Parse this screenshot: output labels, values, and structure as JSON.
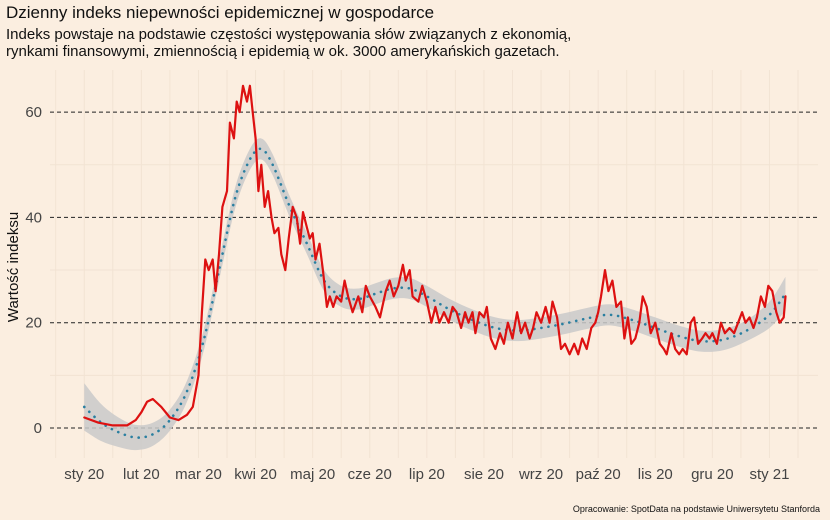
{
  "title": "Dzienny indeks niepewności epidemicznej w gospodarce",
  "subtitle": [
    "Indeks powstaje na podstawie częstości występowania słów związanych z ekonomią,",
    "rynkami finansowymi, zmiennością i epidemią w ok. 3000 amerykańskich gazetach."
  ],
  "source": "Opracowanie: SpotData na podstawie Uniwersytetu Stanforda",
  "colors": {
    "background": "#fbeee0",
    "index_line": "#dd1111",
    "trend_dots": "#2a7fa0",
    "confidence_band": "#c9c9c9",
    "grid_dashed": "#222222",
    "grid_minor": "#f2e3d3"
  },
  "chart_data": {
    "type": "line",
    "title": "Dzienny indeks niepewności epidemicznej w gospodarce",
    "xlabel": "",
    "ylabel": "Wartość indeksu",
    "x_unit": "month (0 = sty 20)",
    "xlim": [
      -0.6,
      12.85
    ],
    "ylim": [
      -5.7,
      68
    ],
    "grid": "horizontal dashed",
    "y_ticks": [
      0,
      20,
      40,
      60
    ],
    "x_tick_labels": [
      "sty 20",
      "lut 20",
      "mar 20",
      "kwi 20",
      "maj 20",
      "cze 20",
      "lip 20",
      "sie 20",
      "wrz 20",
      "paź 20",
      "lis 20",
      "gru 20",
      "sty 21"
    ],
    "series": [
      {
        "kind": "index",
        "points": [
          [
            0.0,
            2.0
          ],
          [
            0.25,
            1.0
          ],
          [
            0.5,
            0.5
          ],
          [
            0.75,
            0.5
          ],
          [
            0.9,
            1.5
          ],
          [
            1.0,
            3.0
          ],
          [
            1.1,
            5.0
          ],
          [
            1.2,
            5.5
          ],
          [
            1.35,
            4.0
          ],
          [
            1.5,
            2.0
          ],
          [
            1.65,
            1.5
          ],
          [
            1.8,
            2.5
          ],
          [
            1.9,
            4.0
          ],
          [
            2.0,
            10.0
          ],
          [
            2.06,
            22.0
          ],
          [
            2.12,
            32.0
          ],
          [
            2.18,
            30.0
          ],
          [
            2.25,
            32.0
          ],
          [
            2.3,
            26.0
          ],
          [
            2.36,
            33.0
          ],
          [
            2.42,
            42.0
          ],
          [
            2.5,
            45.0
          ],
          [
            2.55,
            58.0
          ],
          [
            2.62,
            55.0
          ],
          [
            2.67,
            62.0
          ],
          [
            2.72,
            60.0
          ],
          [
            2.78,
            65.0
          ],
          [
            2.85,
            62.0
          ],
          [
            2.9,
            65.0
          ],
          [
            2.95,
            60.0
          ],
          [
            3.0,
            55.0
          ],
          [
            3.05,
            45.0
          ],
          [
            3.1,
            50.0
          ],
          [
            3.16,
            42.0
          ],
          [
            3.22,
            45.0
          ],
          [
            3.28,
            40.0
          ],
          [
            3.33,
            37.0
          ],
          [
            3.4,
            38.0
          ],
          [
            3.45,
            33.0
          ],
          [
            3.52,
            30.0
          ],
          [
            3.58,
            36.0
          ],
          [
            3.65,
            42.0
          ],
          [
            3.72,
            40.0
          ],
          [
            3.78,
            35.0
          ],
          [
            3.83,
            41.0
          ],
          [
            3.9,
            38.0
          ],
          [
            3.95,
            36.0
          ],
          [
            4.0,
            37.0
          ],
          [
            4.05,
            32.0
          ],
          [
            4.12,
            35.0
          ],
          [
            4.18,
            30.0
          ],
          [
            4.25,
            23.0
          ],
          [
            4.3,
            25.0
          ],
          [
            4.36,
            23.0
          ],
          [
            4.42,
            25.0
          ],
          [
            4.5,
            24.0
          ],
          [
            4.56,
            28.0
          ],
          [
            4.62,
            25.0
          ],
          [
            4.7,
            22.0
          ],
          [
            4.8,
            25.0
          ],
          [
            4.87,
            22.0
          ],
          [
            4.93,
            27.0
          ],
          [
            5.0,
            25.0
          ],
          [
            5.1,
            23.0
          ],
          [
            5.18,
            21.0
          ],
          [
            5.28,
            26.0
          ],
          [
            5.35,
            28.0
          ],
          [
            5.42,
            25.0
          ],
          [
            5.5,
            27.0
          ],
          [
            5.58,
            31.0
          ],
          [
            5.63,
            28.0
          ],
          [
            5.7,
            30.0
          ],
          [
            5.75,
            25.0
          ],
          [
            5.85,
            24.0
          ],
          [
            5.92,
            27.0
          ],
          [
            6.0,
            24.0
          ],
          [
            6.08,
            20.0
          ],
          [
            6.15,
            23.0
          ],
          [
            6.22,
            20.0
          ],
          [
            6.3,
            22.0
          ],
          [
            6.38,
            20.0
          ],
          [
            6.45,
            23.0
          ],
          [
            6.52,
            22.0
          ],
          [
            6.6,
            19.0
          ],
          [
            6.67,
            22.0
          ],
          [
            6.73,
            20.0
          ],
          [
            6.8,
            22.0
          ],
          [
            6.85,
            18.0
          ],
          [
            6.92,
            22.0
          ],
          [
            7.0,
            21.0
          ],
          [
            7.05,
            23.0
          ],
          [
            7.12,
            17.0
          ],
          [
            7.2,
            15.0
          ],
          [
            7.28,
            18.0
          ],
          [
            7.35,
            16.0
          ],
          [
            7.42,
            20.0
          ],
          [
            7.5,
            17.0
          ],
          [
            7.58,
            22.0
          ],
          [
            7.65,
            18.0
          ],
          [
            7.72,
            20.0
          ],
          [
            7.8,
            17.0
          ],
          [
            7.86,
            19.0
          ],
          [
            7.92,
            22.0
          ],
          [
            8.0,
            20.0
          ],
          [
            8.08,
            23.0
          ],
          [
            8.15,
            20.0
          ],
          [
            8.2,
            24.0
          ],
          [
            8.28,
            21.0
          ],
          [
            8.35,
            15.0
          ],
          [
            8.42,
            16.0
          ],
          [
            8.5,
            14.0
          ],
          [
            8.58,
            16.0
          ],
          [
            8.65,
            14.0
          ],
          [
            8.72,
            17.0
          ],
          [
            8.8,
            15.0
          ],
          [
            8.88,
            19.0
          ],
          [
            8.95,
            20.0
          ],
          [
            9.0,
            22.0
          ],
          [
            9.05,
            25.0
          ],
          [
            9.12,
            30.0
          ],
          [
            9.18,
            26.0
          ],
          [
            9.25,
            28.0
          ],
          [
            9.32,
            23.0
          ],
          [
            9.4,
            24.0
          ],
          [
            9.46,
            17.0
          ],
          [
            9.52,
            21.0
          ],
          [
            9.58,
            16.0
          ],
          [
            9.65,
            17.0
          ],
          [
            9.72,
            20.0
          ],
          [
            9.78,
            25.0
          ],
          [
            9.85,
            23.0
          ],
          [
            9.92,
            18.0
          ],
          [
            10.0,
            20.0
          ],
          [
            10.08,
            16.0
          ],
          [
            10.15,
            15.0
          ],
          [
            10.2,
            14.0
          ],
          [
            10.28,
            18.0
          ],
          [
            10.35,
            15.0
          ],
          [
            10.42,
            14.0
          ],
          [
            10.48,
            15.0
          ],
          [
            10.55,
            14.0
          ],
          [
            10.62,
            20.0
          ],
          [
            10.68,
            21.0
          ],
          [
            10.75,
            16.0
          ],
          [
            10.82,
            17.0
          ],
          [
            10.88,
            18.0
          ],
          [
            10.95,
            17.0
          ],
          [
            11.0,
            18.0
          ],
          [
            11.08,
            16.0
          ],
          [
            11.15,
            20.0
          ],
          [
            11.22,
            18.0
          ],
          [
            11.3,
            19.0
          ],
          [
            11.38,
            18.0
          ],
          [
            11.45,
            20.0
          ],
          [
            11.52,
            22.0
          ],
          [
            11.58,
            20.0
          ],
          [
            11.65,
            21.0
          ],
          [
            11.72,
            19.0
          ],
          [
            11.78,
            21.0
          ],
          [
            11.85,
            25.0
          ],
          [
            11.92,
            23.0
          ],
          [
            11.98,
            27.0
          ],
          [
            12.05,
            26.0
          ],
          [
            12.12,
            22.0
          ],
          [
            12.18,
            20.0
          ],
          [
            12.25,
            21.0
          ],
          [
            12.28,
            25.0
          ]
        ]
      },
      {
        "kind": "trend",
        "points": [
          [
            0.0,
            4.0
          ],
          [
            0.3,
            1.0
          ],
          [
            0.6,
            -0.8
          ],
          [
            0.9,
            -1.8
          ],
          [
            1.2,
            -1.2
          ],
          [
            1.5,
            1.5
          ],
          [
            1.8,
            7.0
          ],
          [
            2.1,
            17.0
          ],
          [
            2.4,
            32.0
          ],
          [
            2.65,
            44.0
          ],
          [
            2.9,
            51.0
          ],
          [
            3.1,
            53.0
          ],
          [
            3.3,
            50.0
          ],
          [
            3.6,
            42.0
          ],
          [
            3.9,
            35.0
          ],
          [
            4.2,
            28.0
          ],
          [
            4.5,
            25.0
          ],
          [
            4.8,
            24.5
          ],
          [
            5.1,
            25.5
          ],
          [
            5.4,
            26.5
          ],
          [
            5.7,
            26.5
          ],
          [
            6.0,
            25.0
          ],
          [
            6.4,
            22.5
          ],
          [
            6.8,
            20.5
          ],
          [
            7.2,
            19.0
          ],
          [
            7.6,
            18.5
          ],
          [
            8.0,
            19.0
          ],
          [
            8.4,
            19.8
          ],
          [
            8.8,
            20.8
          ],
          [
            9.2,
            21.5
          ],
          [
            9.6,
            20.5
          ],
          [
            10.0,
            19.0
          ],
          [
            10.4,
            17.5
          ],
          [
            10.8,
            16.5
          ],
          [
            11.2,
            16.8
          ],
          [
            11.6,
            18.5
          ],
          [
            12.0,
            21.5
          ],
          [
            12.28,
            25.5
          ]
        ],
        "band_halfwidth": [
          4.5,
          3.5,
          2.8,
          2.4,
          2.2,
          2.0,
          2.0,
          2.0,
          2.0,
          2.0,
          2.0,
          2.0,
          2.0,
          2.0,
          2.0,
          2.0,
          2.0,
          2.0,
          2.0,
          2.0,
          2.0,
          2.0,
          2.0,
          2.0,
          2.0,
          2.0,
          2.0,
          2.0,
          2.0,
          2.0,
          2.0,
          2.0,
          2.0,
          2.0,
          2.0,
          2.0,
          2.5,
          3.2
        ]
      }
    ]
  }
}
